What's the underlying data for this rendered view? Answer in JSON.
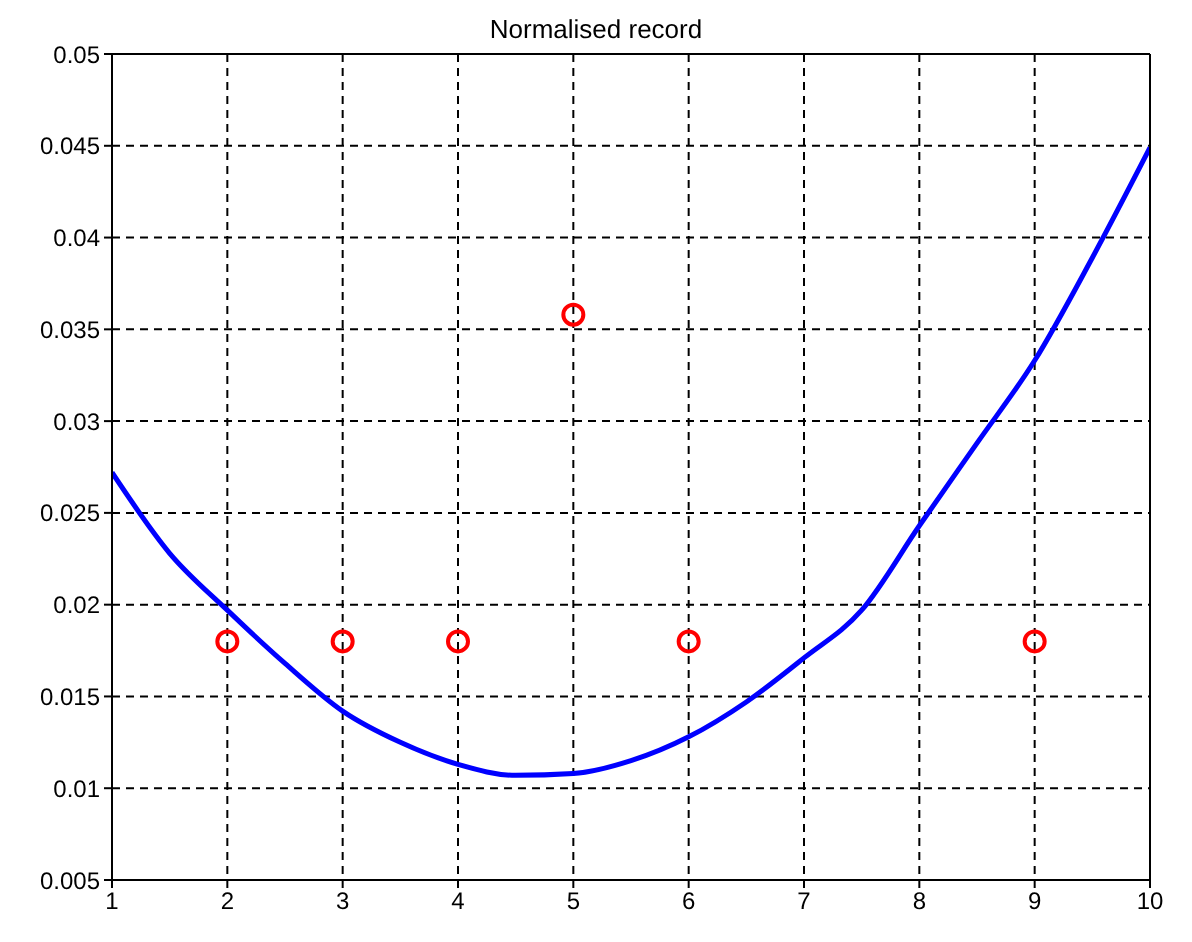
{
  "chart_data": {
    "type": "line",
    "title": "Normalised record",
    "xlim": [
      1,
      10
    ],
    "xticks": [
      1,
      2,
      3,
      4,
      5,
      6,
      7,
      8,
      9,
      10
    ],
    "ylim": [
      0.005,
      0.05
    ],
    "yticks": [
      0.005,
      0.01,
      0.015,
      0.02,
      0.025,
      0.03,
      0.035,
      0.04,
      0.045,
      0.05
    ],
    "grid": true,
    "series": [
      {
        "color": "#0000ff",
        "marker": "none",
        "line_style": "solid",
        "x": [
          1,
          1.5,
          2,
          2.5,
          3,
          3.5,
          4,
          4.5,
          5,
          5.5,
          6,
          6.5,
          7,
          7.5,
          8,
          8.5,
          9,
          9.5,
          10
        ],
        "values": [
          0.0272,
          0.0228,
          0.0197,
          0.0168,
          0.0142,
          0.0125,
          0.0113,
          0.0107,
          0.0108,
          0.0115,
          0.0128,
          0.0147,
          0.0171,
          0.0197,
          0.0243,
          0.0288,
          0.0333,
          0.0389,
          0.0449
        ]
      },
      {
        "type": "scatter",
        "color": "#ff0000",
        "marker": "circle",
        "x": [
          2,
          3,
          4,
          5,
          6,
          9
        ],
        "values": [
          0.018,
          0.018,
          0.018,
          0.0358,
          0.018,
          0.018
        ]
      }
    ]
  }
}
